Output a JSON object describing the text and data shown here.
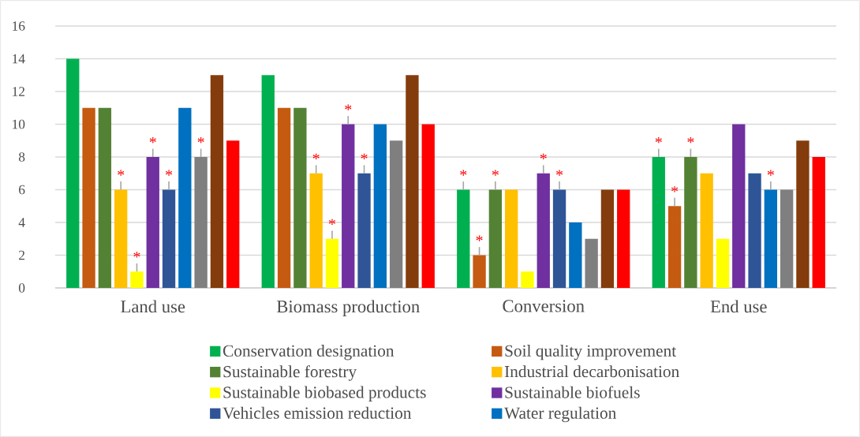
{
  "chart_data": {
    "type": "bar",
    "categories": [
      "Land use",
      "Biomass production",
      "Conversion",
      "End use"
    ],
    "series": [
      {
        "name": "Conservation designation",
        "color": "#00b050",
        "values": [
          14,
          13,
          6,
          8
        ],
        "errors": [
          null,
          null,
          [
            6,
            6.5
          ],
          [
            8,
            8.5
          ]
        ],
        "value_labels": [
          null,
          null,
          "*",
          "*"
        ]
      },
      {
        "name": "Soil quality improvement",
        "color": "#c55a11",
        "values": [
          11,
          11,
          2,
          5
        ],
        "errors": [
          null,
          null,
          [
            2,
            2.5
          ],
          [
            5,
            5.5
          ]
        ],
        "value_labels": [
          null,
          null,
          "*",
          "*"
        ]
      },
      {
        "name": "Sustainable forestry",
        "color": "#548235",
        "values": [
          11,
          11,
          6,
          8
        ],
        "errors": [
          null,
          null,
          [
            6,
            6.5
          ],
          [
            8,
            8.5
          ]
        ],
        "value_labels": [
          null,
          null,
          "*",
          "*"
        ]
      },
      {
        "name": "Industrial decarbonisation",
        "color": "#ffc000",
        "values": [
          6,
          7,
          6,
          7
        ],
        "errors": [
          [
            6,
            6.5
          ],
          [
            7,
            7.5
          ],
          null,
          null
        ],
        "value_labels": [
          "*",
          "*",
          null,
          null
        ]
      },
      {
        "name": "Sustainable biobased products",
        "color": "#ffff00",
        "values": [
          1,
          3,
          1,
          3
        ],
        "errors": [
          [
            1,
            1.5
          ],
          [
            3,
            3.5
          ],
          null,
          null
        ],
        "value_labels": [
          "*",
          "*",
          null,
          null
        ]
      },
      {
        "name": "Sustainable biofuels",
        "color": "#7030a0",
        "values": [
          8,
          10,
          7,
          10
        ],
        "errors": [
          [
            8,
            8.5
          ],
          [
            10,
            10.5
          ],
          [
            7,
            7.5
          ],
          null
        ],
        "value_labels": [
          "*",
          "*",
          "*",
          null
        ]
      },
      {
        "name": "Vehicles emission reduction",
        "color": "#2f5597",
        "values": [
          6,
          7,
          6,
          7
        ],
        "errors": [
          [
            6,
            6.5
          ],
          [
            7,
            7.5
          ],
          [
            6,
            6.5
          ],
          null
        ],
        "value_labels": [
          "*",
          "*",
          "*",
          null
        ]
      },
      {
        "name": "Water regulation",
        "color": "#0070c0",
        "values": [
          11,
          10,
          4,
          6
        ],
        "errors": [
          null,
          null,
          null,
          [
            6,
            6.5
          ]
        ],
        "value_labels": [
          null,
          null,
          null,
          "*"
        ]
      },
      {
        "color": "#7f7f7f",
        "values": [
          8,
          9,
          3,
          6
        ],
        "errors": [
          [
            8,
            8.5
          ],
          null,
          null,
          null
        ],
        "value_labels": [
          "*",
          null,
          null,
          null
        ]
      },
      {
        "color": "#843c0c",
        "values": [
          13,
          13,
          6,
          9
        ]
      },
      {
        "color": "#ff0000",
        "values": [
          9,
          10,
          6,
          8
        ]
      }
    ],
    "ylim": [
      0,
      16
    ],
    "yticks": [
      0,
      2,
      4,
      6,
      8,
      10,
      12,
      14,
      16
    ],
    "grid": "y",
    "legend": "bottom"
  }
}
